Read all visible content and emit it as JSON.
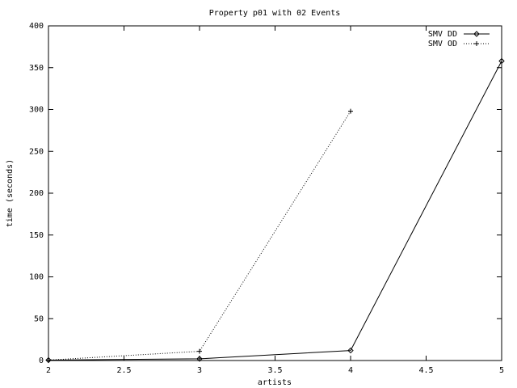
{
  "chart_data": {
    "type": "line",
    "title": "Property p01 with 02 Events",
    "x_label": "artists",
    "y_label": "time (seconds)",
    "x": [
      2,
      3,
      4,
      5
    ],
    "series": [
      {
        "name": "SMV DD",
        "color": "#000000",
        "style": "solid",
        "marker": "diamond",
        "values": [
          0.5,
          2,
          12,
          358
        ]
      },
      {
        "name": "SMV OD",
        "color": "#000000",
        "style": "dotted",
        "marker": "plus",
        "values": [
          0.5,
          11,
          298,
          null
        ]
      }
    ],
    "xlim": [
      2,
      5
    ],
    "xticks": [
      2,
      2.5,
      3,
      3.5,
      4,
      4.5,
      5
    ],
    "ylim": [
      0,
      400
    ],
    "yticks": [
      0,
      50,
      100,
      150,
      200,
      250,
      300,
      350,
      400
    ],
    "legend": "top-right",
    "grid": false
  }
}
